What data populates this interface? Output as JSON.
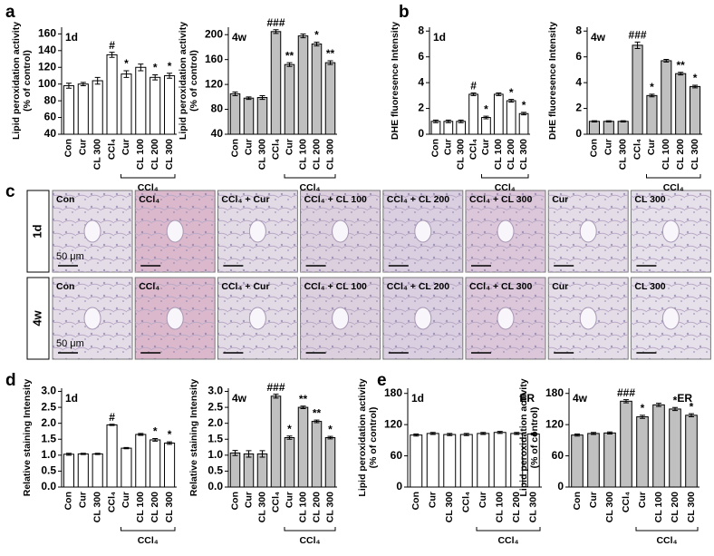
{
  "panel_labels": [
    "a",
    "b",
    "c",
    "d",
    "e"
  ],
  "histology": {
    "rows": [
      "1d",
      "4w"
    ],
    "columns": [
      "Con",
      "CCl₄",
      "CCl₄ + Cur",
      "CCl₄ + CL 100",
      "CCl₄ + CL 200",
      "CCl₄ + CL 300",
      "Cur",
      "CL 300"
    ],
    "scale_bar": "50 μm"
  },
  "chart_data": [
    {
      "type": "bar",
      "label": "1d",
      "ylabel": [
        "Lipid peroxidation activity",
        "(% of control)"
      ],
      "categories": [
        "Con",
        "Cur",
        "CL 300",
        "CCl₄",
        "Cur",
        "CL 100",
        "CL 200",
        "CL 300"
      ],
      "values": [
        98,
        100,
        104,
        135,
        112,
        120,
        108,
        110
      ],
      "errors": [
        3,
        2,
        4,
        3,
        4,
        4,
        3,
        3
      ],
      "annotations": [
        null,
        null,
        null,
        "#",
        "*",
        null,
        "*",
        "*"
      ],
      "group_label": "CCl₄",
      "color": "#ffffff",
      "ylim": [
        40,
        168
      ],
      "yticks": [
        40,
        60,
        80,
        100,
        120,
        140,
        160
      ]
    },
    {
      "type": "bar",
      "label": "4w",
      "ylabel": [
        "Lipid peroxidation activity",
        "(% of control)"
      ],
      "categories": [
        "Con",
        "Cur",
        "CL 300",
        "CCl₄",
        "Cur",
        "CL 100",
        "CL 200",
        "CL 300"
      ],
      "values": [
        105,
        98,
        99,
        205,
        152,
        198,
        185,
        155
      ],
      "errors": [
        3,
        2,
        3,
        3,
        3,
        3,
        3,
        3
      ],
      "annotations": [
        null,
        null,
        null,
        "###",
        "**",
        null,
        "*",
        "**"
      ],
      "group_label": "CCl₄",
      "color": "#c0c0c0",
      "ylim": [
        40,
        212
      ],
      "yticks": [
        40,
        80,
        120,
        160,
        200
      ]
    },
    {
      "type": "bar",
      "label": "1d",
      "ylabel": [
        "DHE fluoresence Intensity"
      ],
      "categories": [
        "Con",
        "Cur",
        "CL 300",
        "CCl₄",
        "Cur",
        "CL 100",
        "CL 200",
        "CL 300"
      ],
      "values": [
        1.0,
        1.0,
        1.0,
        3.1,
        1.3,
        3.1,
        2.6,
        1.6
      ],
      "errors": [
        0.1,
        0.1,
        0.1,
        0.1,
        0.1,
        0.1,
        0.1,
        0.1
      ],
      "annotations": [
        null,
        null,
        null,
        "#",
        "*",
        null,
        "*",
        "*"
      ],
      "group_label": "CCl₄",
      "color": "#ffffff",
      "ylim": [
        0,
        8.3
      ],
      "yticks": [
        0,
        2,
        4,
        6,
        8
      ]
    },
    {
      "type": "bar",
      "label": "4w",
      "ylabel": [
        "DHE fluoresence Intensity"
      ],
      "categories": [
        "Con",
        "Cur",
        "CL 300",
        "CCl₄",
        "Cur",
        "CL 100",
        "CL 200",
        "CL 300"
      ],
      "values": [
        1.0,
        1.0,
        1.0,
        6.9,
        3.0,
        5.7,
        4.7,
        3.7
      ],
      "errors": [
        0.05,
        0.05,
        0.05,
        0.25,
        0.1,
        0.1,
        0.1,
        0.1
      ],
      "annotations": [
        null,
        null,
        null,
        "###",
        "*",
        null,
        "**",
        "*"
      ],
      "group_label": "CCl₄",
      "color": "#c0c0c0",
      "ylim": [
        0,
        8.3
      ],
      "yticks": [
        0,
        2,
        4,
        6,
        8
      ]
    },
    {
      "type": "bar",
      "label": "1d",
      "ylabel": [
        "Relative staining Intensity"
      ],
      "categories": [
        "Con",
        "Cur",
        "CL 300",
        "CCl₄",
        "Cur",
        "CL 100",
        "CL 200",
        "CL 300"
      ],
      "values": [
        1.03,
        1.04,
        1.04,
        1.95,
        1.22,
        1.65,
        1.48,
        1.38
      ],
      "errors": [
        0.03,
        0.02,
        0.02,
        0.02,
        0.02,
        0.03,
        0.04,
        0.04
      ],
      "annotations": [
        null,
        null,
        null,
        "#",
        null,
        null,
        "*",
        "*"
      ],
      "group_label": "CCl₄",
      "color": "#ffffff",
      "ylim": [
        0,
        3.1
      ],
      "yticks": [
        {
          "value": 0,
          "label": "0.0"
        },
        0.5,
        {
          "value": 1,
          "label": "1.0"
        },
        1.5,
        {
          "value": 2,
          "label": "2.0"
        },
        2.5,
        {
          "value": 3,
          "label": "3.0"
        }
      ]
    },
    {
      "type": "bar",
      "label": "4w",
      "ylabel": [
        "Relative staining Intensity"
      ],
      "categories": [
        "Con",
        "Cur",
        "CL 300",
        "CCl₄",
        "Cur",
        "CL 100",
        "CL 200",
        "CL 300"
      ],
      "values": [
        1.07,
        1.04,
        1.04,
        2.85,
        1.55,
        2.5,
        2.06,
        1.55
      ],
      "errors": [
        0.08,
        0.1,
        0.1,
        0.06,
        0.05,
        0.04,
        0.04,
        0.04
      ],
      "annotations": [
        null,
        null,
        null,
        "###",
        "*",
        "**",
        "**",
        "*"
      ],
      "group_label": "CCl₄",
      "color": "#c0c0c0",
      "ylim": [
        0,
        3.1
      ],
      "yticks": [
        {
          "value": 0,
          "label": "0.0"
        },
        0.5,
        {
          "value": 1,
          "label": "1.0"
        },
        1.5,
        {
          "value": 2,
          "label": "2.0"
        },
        2.5,
        {
          "value": 3,
          "label": "3.0"
        }
      ]
    },
    {
      "type": "bar",
      "label": "1d",
      "tag": "ER",
      "ylabel": [
        "Lipid peroxidation activity",
        "(% of control)"
      ],
      "categories": [
        "Con",
        "Cur",
        "CL 300",
        "CCl₄",
        "Cur",
        "CL 100",
        "CL 200",
        "CL 300"
      ],
      "values": [
        100,
        103,
        101,
        101,
        103,
        105,
        103,
        102
      ],
      "errors": [
        2,
        2,
        2,
        2,
        2,
        2,
        2,
        2
      ],
      "annotations": [
        null,
        null,
        null,
        null,
        null,
        null,
        null,
        null
      ],
      "group_label": "CCl₄",
      "color": "#ffffff",
      "ylim": [
        0,
        190
      ],
      "yticks": [
        0,
        60,
        120,
        180
      ]
    },
    {
      "type": "bar",
      "label": "4w",
      "tag": "ER",
      "ylabel": [
        "Lipid peroxidation activity",
        "(% of control)"
      ],
      "categories": [
        "Con",
        "Cur",
        "CL 300",
        "CCl₄",
        "Cur",
        "CL 100",
        "CL 200",
        "CL 300"
      ],
      "values": [
        100,
        103,
        104,
        165,
        135,
        158,
        150,
        138
      ],
      "errors": [
        2,
        2,
        2,
        3,
        3,
        3,
        3,
        3
      ],
      "annotations": [
        null,
        null,
        null,
        "###",
        "*",
        null,
        "*",
        "*"
      ],
      "group_label": "CCl₄",
      "color": "#c0c0c0",
      "ylim": [
        0,
        190
      ],
      "yticks": [
        0,
        60,
        120,
        180
      ]
    }
  ]
}
